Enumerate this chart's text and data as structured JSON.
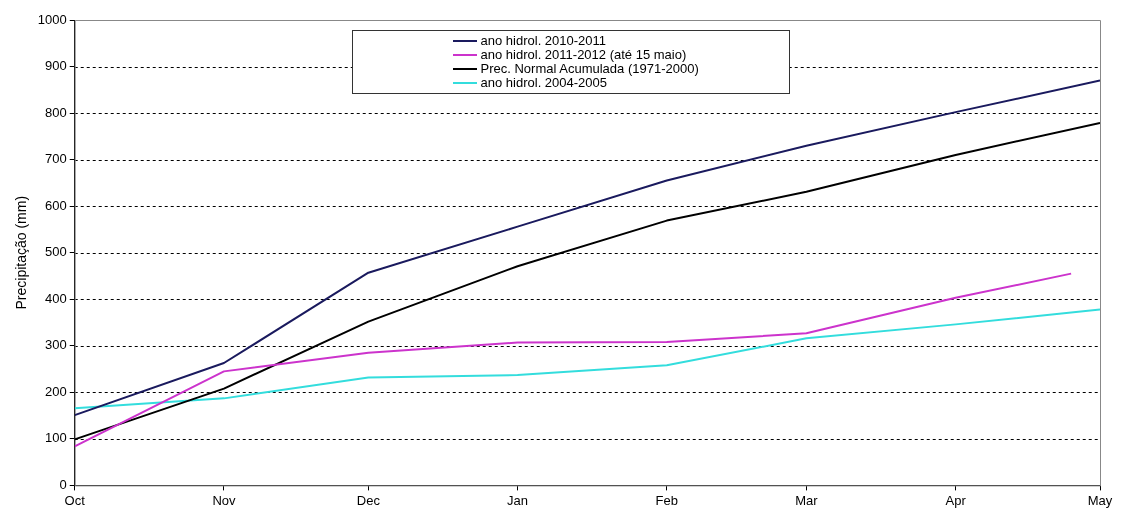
{
  "chart_data": {
    "type": "line",
    "ylabel": "Precipitação (mm)",
    "x": [
      "2011-10-01",
      "2011-11-01",
      "2011-12-01",
      "2012-01-01",
      "2012-02-01",
      "2012-03-01",
      "2012-04-01",
      "2012-05-01"
    ],
    "xlim": [
      "2011-10-01",
      "2012-05-01"
    ],
    "xticks": [
      {
        "value": "2011-10-01",
        "label": "Oct"
      },
      {
        "value": "2011-11-01",
        "label": "Nov"
      },
      {
        "value": "2011-12-01",
        "label": "Dec"
      },
      {
        "value": "2012-01-01",
        "label": "Jan"
      },
      {
        "value": "2012-02-01",
        "label": "Feb"
      },
      {
        "value": "2012-03-01",
        "label": "Mar"
      },
      {
        "value": "2012-04-01",
        "label": "Apr"
      },
      {
        "value": "2012-05-01",
        "label": "May"
      }
    ],
    "ylim": [
      0,
      1000
    ],
    "yticks": [
      0,
      100,
      200,
      300,
      400,
      500,
      600,
      700,
      800,
      900,
      1000
    ],
    "grid": "y",
    "legend": "top",
    "marker": "none",
    "line_style": "solid",
    "series": [
      {
        "name": "ano hidrol. 2010-2011",
        "color": "#1a1a5e",
        "values": [
          151,
          263,
          457,
          556,
          655,
          730,
          802,
          870
        ]
      },
      {
        "name": "ano hidrol. 2011-2012 (até 15 maio)",
        "color": "#cc33cc",
        "x": [
          "2011-10-01",
          "2011-11-01",
          "2011-12-01",
          "2012-01-01",
          "2012-02-01",
          "2012-03-01",
          "2012-04-01",
          "2012-04-25"
        ],
        "values": [
          84,
          245,
          285,
          307,
          308,
          327,
          403,
          455
        ]
      },
      {
        "name": "Prec. Normal Acumulada (1971-2000)",
        "color": "#000000",
        "values": [
          99,
          208,
          352,
          471,
          569,
          631,
          710,
          779
        ]
      },
      {
        "name": "ano hidrol. 2004-2005",
        "color": "#33dddd",
        "values": [
          166,
          187,
          232,
          237,
          258,
          316,
          346,
          378
        ]
      }
    ]
  }
}
